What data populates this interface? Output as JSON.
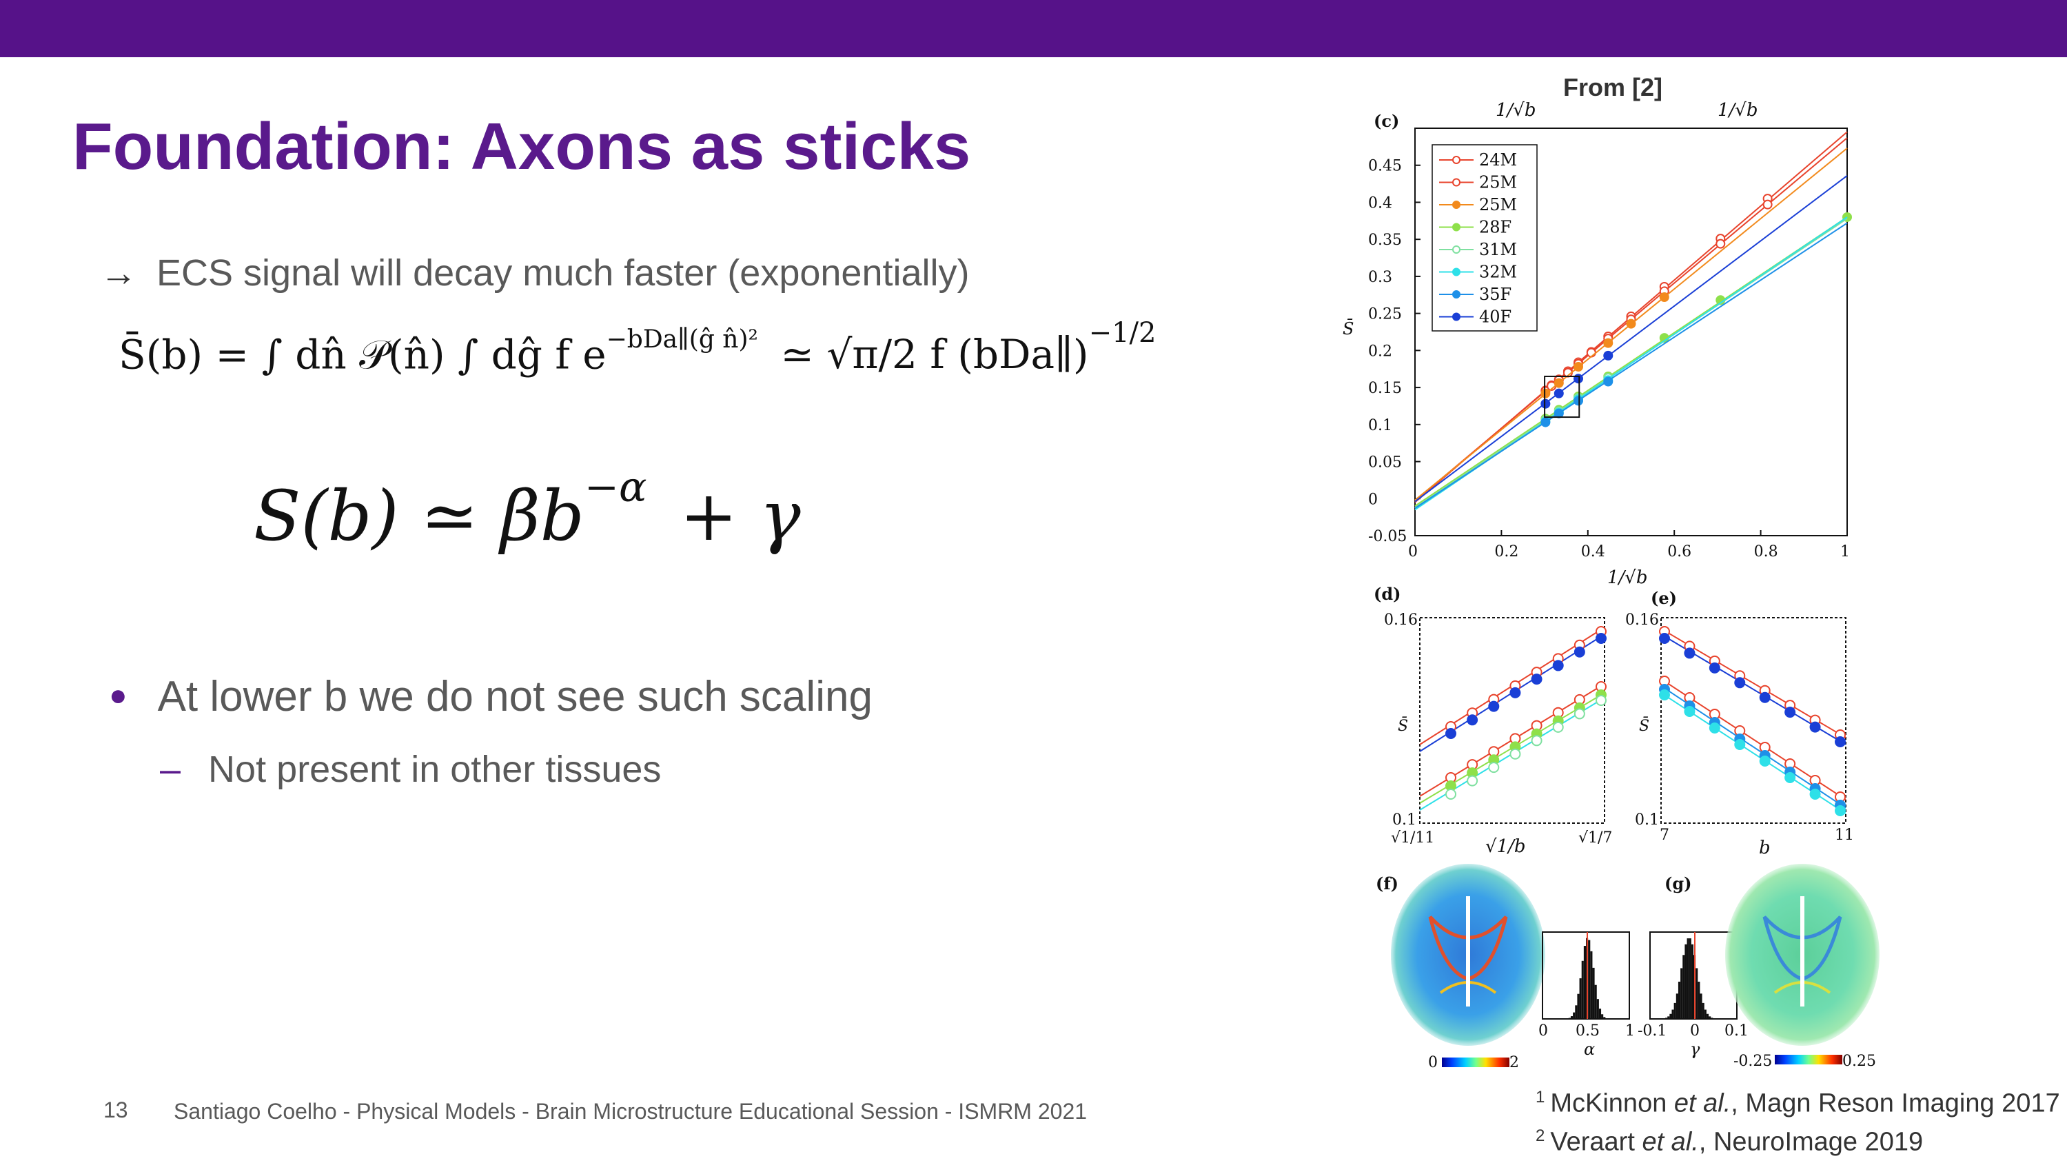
{
  "header": {
    "title": "Foundation: Axons as sticks"
  },
  "content": {
    "arrow_text": "ECS signal will decay much faster (exponentially)",
    "bullet": "At lower b we do not see such scaling",
    "sub_bullet": "Not present in other tissues"
  },
  "equations": {
    "eq1_lhs": "S̄(b) = ∫ dn̂ 𝒫(n̂) ∫ dĝ  f e",
    "eq1_exp": "−bDa∥(ĝ n̂)²",
    "eq1_rhs": "≃ √π/2 f (bDa∥)",
    "eq1_rhs_exp": "−1/2",
    "eq2": "S(b) ≃ βb",
    "eq2_exp": "−α",
    "eq2_tail": "+ γ"
  },
  "figure": {
    "source_label": "From [2]",
    "panel_c": "(c)",
    "panel_d": "(d)",
    "panel_e": "(e)",
    "panel_f": "(f)",
    "panel_g": "(g)",
    "top_axis_label": "1/√b",
    "c_xlabel": "1/√b",
    "c_ylabel": "S̄",
    "d_xlabel": "√1/b",
    "d_xticks": [
      "√1/11",
      "√1/7"
    ],
    "e_xlabel": "b",
    "e_xticks": [
      "7",
      "11"
    ],
    "de_ylabel": "S̄",
    "de_yticks": [
      "0.16",
      "0.1"
    ],
    "f_colorbar": [
      "0",
      "2"
    ],
    "g_colorbar": [
      "-0.25",
      "0.25"
    ],
    "alpha_hist_ticks": [
      "0",
      "0.5",
      "1"
    ],
    "alpha_label": "α",
    "gamma_hist_ticks": [
      "-0.1",
      "0",
      "0.1"
    ],
    "gamma_label": "γ"
  },
  "chart_data": {
    "type": "line",
    "panel": "(c)",
    "xlabel": "1/√b",
    "ylabel": "S̄",
    "xlim": [
      0,
      1
    ],
    "ylim": [
      -0.05,
      0.5
    ],
    "xticks": [
      0,
      0.2,
      0.4,
      0.6,
      0.8,
      1
    ],
    "yticks": [
      -0.05,
      0,
      0.05,
      0.1,
      0.15,
      0.2,
      0.25,
      0.3,
      0.35,
      0.4,
      0.45
    ],
    "legend_position": "top-left",
    "series": [
      {
        "name": "24M",
        "color": "#e8432c",
        "fit": [
          -0.005,
          0.5
        ],
        "points": [
          [
            0.302,
            0.146
          ],
          [
            0.316,
            0.153
          ],
          [
            0.333,
            0.161
          ],
          [
            0.354,
            0.172
          ],
          [
            0.378,
            0.184
          ],
          [
            0.408,
            0.198
          ],
          [
            0.447,
            0.219
          ],
          [
            0.5,
            0.246
          ],
          [
            0.577,
            0.286
          ],
          [
            0.707,
            0.351
          ],
          [
            0.816,
            0.405
          ]
        ]
      },
      {
        "name": "25M",
        "color": "#e8432c",
        "fit": [
          -0.003,
          0.49
        ],
        "points": [
          [
            0.302,
            0.145
          ],
          [
            0.316,
            0.152
          ],
          [
            0.333,
            0.16
          ],
          [
            0.354,
            0.17
          ],
          [
            0.378,
            0.182
          ],
          [
            0.408,
            0.197
          ],
          [
            0.447,
            0.216
          ],
          [
            0.5,
            0.242
          ],
          [
            0.577,
            0.28
          ],
          [
            0.707,
            0.344
          ],
          [
            0.816,
            0.397
          ]
        ]
      },
      {
        "name": "25M",
        "color": "#f28a1c",
        "fit": [
          -0.002,
          0.475
        ],
        "points": [
          [
            0.302,
            0.142
          ],
          [
            0.333,
            0.156
          ],
          [
            0.378,
            0.178
          ],
          [
            0.447,
            0.21
          ],
          [
            0.5,
            0.236
          ],
          [
            0.577,
            0.272
          ]
        ]
      },
      {
        "name": "28F",
        "color": "#8ee04a",
        "fit": [
          -0.01,
          0.39
        ],
        "points": [
          [
            0.302,
            0.108
          ],
          [
            0.333,
            0.12
          ],
          [
            0.378,
            0.138
          ],
          [
            0.447,
            0.165
          ],
          [
            0.577,
            0.217
          ],
          [
            0.707,
            0.268
          ],
          [
            1.0,
            0.38
          ]
        ]
      },
      {
        "name": "31M",
        "color": "#7fe0a0",
        "fit": [
          -0.012,
          0.39
        ],
        "points": [
          [
            0.302,
            0.106
          ],
          [
            0.333,
            0.118
          ],
          [
            0.378,
            0.136
          ],
          [
            0.447,
            0.163
          ]
        ]
      },
      {
        "name": "32M",
        "color": "#2ee0e8",
        "fit": [
          -0.015,
          0.395
        ],
        "points": [
          [
            0.302,
            0.104
          ],
          [
            0.333,
            0.116
          ],
          [
            0.378,
            0.134
          ],
          [
            0.447,
            0.16
          ]
        ]
      },
      {
        "name": "35F",
        "color": "#1e90e8",
        "fit": [
          -0.013,
          0.385
        ],
        "points": [
          [
            0.302,
            0.103
          ],
          [
            0.333,
            0.115
          ],
          [
            0.378,
            0.132
          ],
          [
            0.447,
            0.158
          ]
        ]
      },
      {
        "name": "40F",
        "color": "#1a3fd6",
        "fit": [
          -0.004,
          0.44
        ],
        "points": [
          [
            0.302,
            0.128
          ],
          [
            0.333,
            0.142
          ],
          [
            0.378,
            0.162
          ],
          [
            0.447,
            0.193
          ]
        ]
      }
    ]
  },
  "footer": {
    "page": "13",
    "text": "Santiago Coelho - Physical Models - Brain Microstructure Educational Session - ISMRM 2021",
    "ref1_num": "1",
    "ref1_authors": "McKinnon ",
    "ref1_etal": "et al.",
    "ref1_rest": ", Magn Reson Imaging 2017",
    "ref2_num": "2",
    "ref2_authors": "Veraart ",
    "ref2_etal": "et al.",
    "ref2_rest": ", NeuroImage 2019"
  }
}
